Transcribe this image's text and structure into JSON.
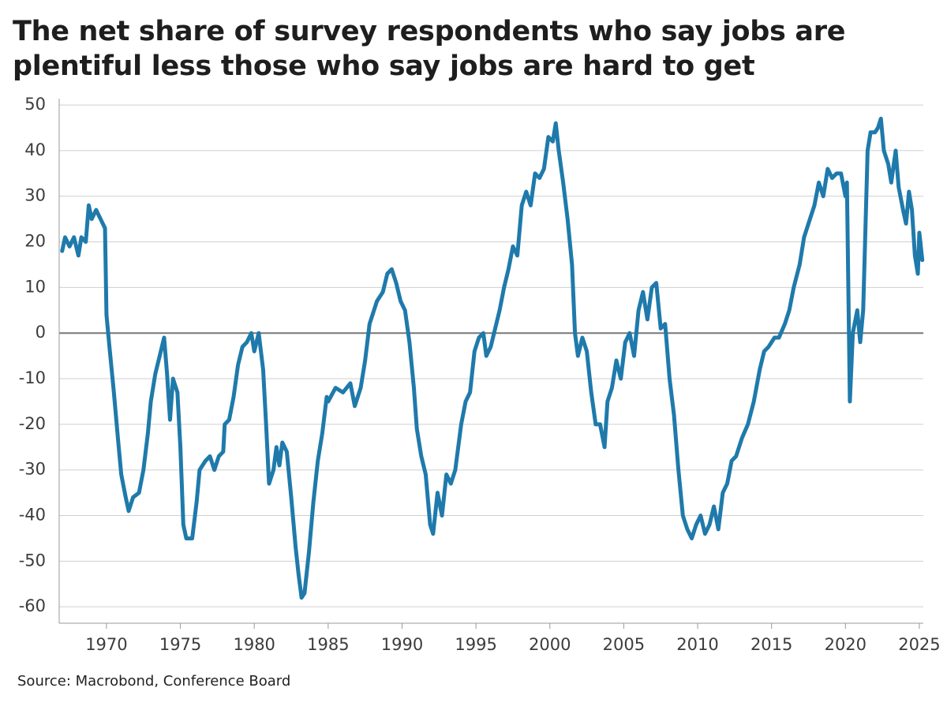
{
  "chart_data": {
    "type": "line",
    "title": "The net share of survey respondents who say jobs are plentiful less those who say jobs are hard to get",
    "source": "Source: Macrobond, Conference Board",
    "color": "#1f7aab",
    "grid": true,
    "xlim": [
      1966.8,
      2025.27
    ],
    "ylim": [
      -63.6,
      51.4
    ],
    "xticks": [
      1970,
      1975,
      1980,
      1985,
      1990,
      1995,
      2000,
      2005,
      2010,
      2015,
      2020,
      2025
    ],
    "yticks": [
      -60,
      -50,
      -40,
      -30,
      -20,
      -10,
      0,
      10,
      20,
      30,
      40,
      50
    ],
    "x": [
      1967.0,
      1967.2,
      1967.5,
      1967.8,
      1968.1,
      1968.3,
      1968.6,
      1968.8,
      1969.0,
      1969.3,
      1969.6,
      1969.9,
      1970.0,
      1970.2,
      1970.5,
      1970.8,
      1971.0,
      1971.3,
      1971.5,
      1971.8,
      1972.2,
      1972.5,
      1972.8,
      1973.0,
      1973.3,
      1973.6,
      1973.9,
      1974.1,
      1974.3,
      1974.5,
      1974.8,
      1975.0,
      1975.2,
      1975.4,
      1975.8,
      1976.1,
      1976.3,
      1976.7,
      1977.0,
      1977.3,
      1977.6,
      1977.9,
      1978.0,
      1978.3,
      1978.6,
      1978.9,
      1979.2,
      1979.5,
      1979.8,
      1980.0,
      1980.3,
      1980.6,
      1980.8,
      1981.0,
      1981.3,
      1981.5,
      1981.7,
      1981.9,
      1982.2,
      1982.5,
      1982.8,
      1983.0,
      1983.2,
      1983.4,
      1983.7,
      1984.0,
      1984.3,
      1984.6,
      1984.9,
      1985.0,
      1985.5,
      1986.0,
      1986.5,
      1986.8,
      1987.2,
      1987.5,
      1987.8,
      1988.0,
      1988.3,
      1988.7,
      1989.0,
      1989.3,
      1989.6,
      1989.9,
      1990.2,
      1990.5,
      1990.8,
      1991.0,
      1991.3,
      1991.6,
      1991.9,
      1992.1,
      1992.4,
      1992.7,
      1993.0,
      1993.3,
      1993.6,
      1994.0,
      1994.3,
      1994.6,
      1994.9,
      1995.2,
      1995.5,
      1995.7,
      1996.0,
      1996.3,
      1996.6,
      1996.9,
      1997.2,
      1997.5,
      1997.8,
      1998.1,
      1998.4,
      1998.7,
      1999.0,
      1999.3,
      1999.6,
      1999.9,
      2000.2,
      2000.4,
      2000.6,
      2000.9,
      2001.2,
      2001.5,
      2001.7,
      2001.9,
      2002.2,
      2002.5,
      2002.8,
      2003.1,
      2003.4,
      2003.7,
      2003.9,
      2004.2,
      2004.5,
      2004.8,
      2005.1,
      2005.4,
      2005.7,
      2006.0,
      2006.3,
      2006.6,
      2006.9,
      2007.2,
      2007.5,
      2007.8,
      2008.1,
      2008.4,
      2008.7,
      2009.0,
      2009.3,
      2009.6,
      2009.9,
      2010.2,
      2010.5,
      2010.8,
      2011.1,
      2011.4,
      2011.7,
      2012.0,
      2012.3,
      2012.6,
      2013.0,
      2013.4,
      2013.8,
      2014.2,
      2014.5,
      2014.8,
      2015.2,
      2015.5,
      2015.9,
      2016.2,
      2016.5,
      2016.9,
      2017.2,
      2017.5,
      2017.9,
      2018.2,
      2018.5,
      2018.8,
      2019.1,
      2019.4,
      2019.7,
      2020.0,
      2020.1,
      2020.3,
      2020.5,
      2020.8,
      2021.0,
      2021.2,
      2021.5,
      2021.7,
      2022.0,
      2022.2,
      2022.4,
      2022.6,
      2022.9,
      2023.1,
      2023.4,
      2023.6,
      2023.9,
      2024.1,
      2024.3,
      2024.5,
      2024.7,
      2024.9,
      2025.0,
      2025.2
    ],
    "values": [
      18,
      21,
      19,
      21,
      17,
      21,
      20,
      28,
      25,
      27,
      25,
      23,
      4,
      -3,
      -13,
      -24,
      -31,
      -36,
      -39,
      -36,
      -35,
      -30,
      -22,
      -15,
      -9,
      -5,
      -1,
      -9,
      -19,
      -10,
      -13,
      -25,
      -42,
      -45,
      -45,
      -37,
      -30,
      -28,
      -27,
      -30,
      -27,
      -26,
      -20,
      -19,
      -14,
      -7,
      -3,
      -2,
      0,
      -4,
      0,
      -8,
      -20,
      -33,
      -30,
      -25,
      -29,
      -24,
      -26,
      -36,
      -47,
      -53,
      -58,
      -57,
      -48,
      -37,
      -28,
      -22,
      -14,
      -15,
      -12,
      -13,
      -11,
      -16,
      -12,
      -6,
      2,
      4,
      7,
      9,
      13,
      14,
      11,
      7,
      5,
      -2,
      -12,
      -21,
      -27,
      -31,
      -42,
      -44,
      -35,
      -40,
      -31,
      -33,
      -30,
      -20,
      -15,
      -13,
      -4,
      -1,
      0,
      -5,
      -3,
      1,
      5,
      10,
      14,
      19,
      17,
      28,
      31,
      28,
      35,
      34,
      36,
      43,
      42,
      46,
      40,
      33,
      25,
      15,
      0,
      -5,
      -1,
      -4,
      -13,
      -20,
      -20,
      -25,
      -15,
      -12,
      -6,
      -10,
      -2,
      0,
      -5,
      5,
      9,
      3,
      10,
      11,
      1,
      2,
      -10,
      -18,
      -30,
      -40,
      -43,
      -45,
      -42,
      -40,
      -44,
      -42,
      -38,
      -43,
      -35,
      -33,
      -28,
      -27,
      -23,
      -20,
      -15,
      -8,
      -4,
      -3,
      -1,
      -1,
      2,
      5,
      10,
      15,
      21,
      24,
      28,
      33,
      30,
      36,
      34,
      35,
      35,
      30,
      33,
      -15,
      0,
      5,
      -2,
      5,
      40,
      44,
      44,
      45,
      47,
      40,
      37,
      33,
      40,
      32,
      27,
      24,
      31,
      27,
      17,
      13,
      22,
      16
    ]
  }
}
